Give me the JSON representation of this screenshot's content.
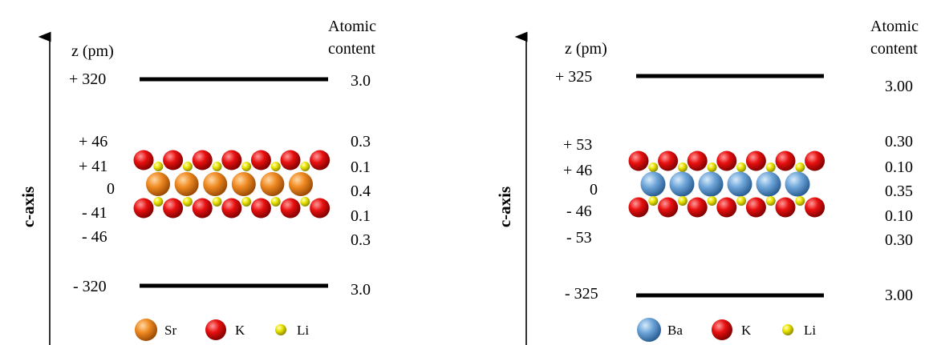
{
  "colors": {
    "sr": "#E8821E",
    "ba": "#6AA3D8",
    "k": "#E01010",
    "li": "#E6E000",
    "plane": "#000000"
  },
  "panels": [
    {
      "axis_label": "c-axis",
      "z_header": "z (pm)",
      "content_header_1": "Atomic",
      "content_header_2": "content",
      "planes": [
        {
          "z": "+ 320",
          "content": "3.0"
        },
        {
          "z": "+ 46",
          "content": "0.3"
        },
        {
          "z": "+ 41",
          "content": "0.1"
        },
        {
          "z": "0",
          "content": "0.4"
        },
        {
          "z": "- 41",
          "content": "0.1"
        },
        {
          "z": "- 46",
          "content": "0.3"
        },
        {
          "z": "- 320",
          "content": "3.0"
        }
      ],
      "legend": [
        {
          "icon": "sr-atom-icon",
          "label": "Sr"
        },
        {
          "icon": "k-atom-icon",
          "label": "K"
        },
        {
          "icon": "li-atom-icon",
          "label": "Li"
        }
      ]
    },
    {
      "axis_label": "c-axis",
      "z_header": "z (pm)",
      "content_header_1": "Atomic",
      "content_header_2": "content",
      "planes": [
        {
          "z": "+ 325",
          "content": "3.00"
        },
        {
          "z": "+ 53",
          "content": "0.30"
        },
        {
          "z": "+ 46",
          "content": "0.10"
        },
        {
          "z": "0",
          "content": "0.35"
        },
        {
          "z": "- 46",
          "content": "0.10"
        },
        {
          "z": "- 53",
          "content": "0.30"
        },
        {
          "z": "- 325",
          "content": "3.00"
        }
      ],
      "legend": [
        {
          "icon": "ba-atom-icon",
          "label": "Ba"
        },
        {
          "icon": "k-atom-icon",
          "label": "K"
        },
        {
          "icon": "li-atom-icon",
          "label": "Li"
        }
      ]
    }
  ]
}
